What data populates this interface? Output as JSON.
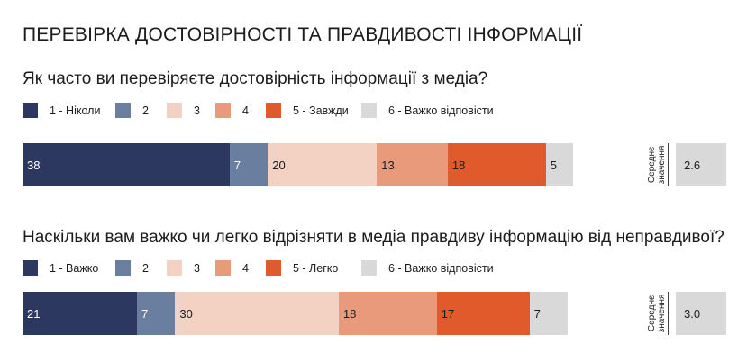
{
  "title": "ПЕРЕВІРКА ДОСТОВІРНОСТІ ТА ПРАВДИВОСТІ ІНФОРМАЦІЇ",
  "colors": {
    "c1": "#2d3860",
    "c2": "#6a7fa0",
    "c3": "#f3d2c4",
    "c4": "#e99a7b",
    "c5": "#e05a2c",
    "c6": "#d9d9d9"
  },
  "average_caption": {
    "line1": "Середнє",
    "line2": "значення"
  },
  "chart_data": [
    {
      "type": "bar",
      "orientation": "horizontal-stacked-100",
      "question": "Як часто ви перевіряєте достовірність інформації з медіа?",
      "legend": [
        "1 - Ніколи",
        "2",
        "3",
        "4",
        "5 - Завжди",
        "6 - Важко відповісти"
      ],
      "values": [
        38,
        7,
        20,
        13,
        18,
        5
      ],
      "value_labels": [
        "38",
        "7",
        "20",
        "13",
        "18",
        "5"
      ],
      "average_label": "2.6"
    },
    {
      "type": "bar",
      "orientation": "horizontal-stacked-100",
      "question": "Наскільки вам важко чи легко відрізняти в медіа правдиву інформацію від неправдивої?",
      "legend": [
        "1 - Важко",
        "2",
        "3",
        "4",
        "5 - Легко",
        "6 - Важко відповісти"
      ],
      "values": [
        21,
        7,
        30,
        18,
        17,
        7
      ],
      "value_labels": [
        "21",
        "7",
        "30",
        "18",
        "17",
        "7"
      ],
      "average_label": "3.0"
    }
  ]
}
